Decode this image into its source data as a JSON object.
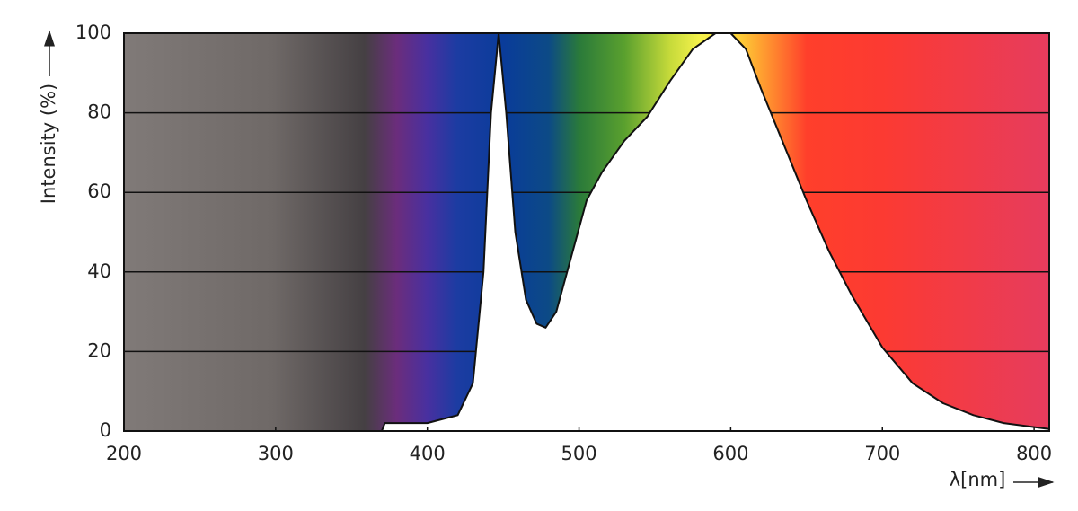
{
  "chart_data": {
    "type": "area",
    "y_label": "Intensity (%)",
    "x_label": "λ[nm]",
    "x": [
      370,
      372,
      400,
      420,
      430,
      437,
      442,
      447,
      452,
      458,
      465,
      472,
      478,
      485,
      495,
      505,
      515,
      530,
      545,
      560,
      575,
      590,
      600,
      610,
      620,
      635,
      650,
      665,
      680,
      700,
      720,
      740,
      760,
      780,
      800,
      810
    ],
    "values": [
      0,
      2,
      2,
      4,
      12,
      40,
      80,
      100,
      80,
      50,
      33,
      27,
      26,
      30,
      44,
      58,
      65,
      73,
      79,
      88,
      96,
      100,
      100,
      96,
      86,
      72,
      58,
      45,
      34,
      21,
      12,
      7,
      4,
      2,
      1,
      0.5
    ],
    "color": "#ffffff",
    "xlim": [
      200,
      810
    ],
    "ylim": [
      0,
      100
    ],
    "xticks": [
      200,
      300,
      400,
      500,
      600,
      700,
      800
    ],
    "yticks": [
      0,
      20,
      40,
      60,
      80,
      100
    ],
    "grid": true
  }
}
